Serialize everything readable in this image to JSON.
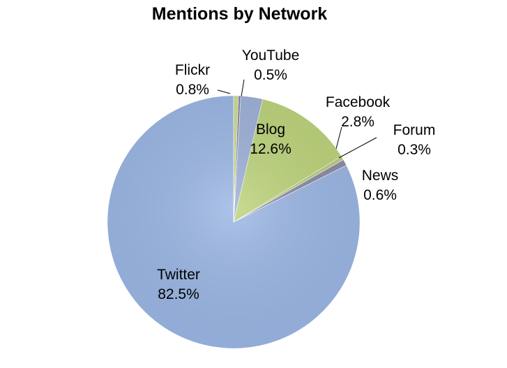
{
  "chart_data": {
    "type": "pie",
    "title": "Mentions by Network",
    "slices": [
      {
        "label": "Twitter",
        "value": 82.5,
        "value_label": "82.5%",
        "color": "#9ab6e4",
        "label_placement": "inside"
      },
      {
        "label": "Flickr",
        "value": 0.8,
        "value_label": "0.8%",
        "color": "#8c8aa6",
        "label_placement": "outside"
      },
      {
        "label": "YouTube",
        "value": 0.5,
        "value_label": "0.5%",
        "color": "#b9cc80",
        "label_placement": "outside"
      },
      {
        "label": "Blog",
        "value": 12.6,
        "value_label": "12.6%",
        "color": "#bcd37a",
        "label_placement": "inside"
      },
      {
        "label": "Facebook",
        "value": 2.8,
        "value_label": "2.8%",
        "color": "#9db0d8",
        "label_placement": "outside"
      },
      {
        "label": "Forum",
        "value": 0.3,
        "value_label": "0.3%",
        "color": "#8a86a4",
        "label_placement": "outside"
      },
      {
        "label": "News",
        "value": 0.6,
        "value_label": "0.6%",
        "color": "#c8dc8e",
        "label_placement": "outside"
      }
    ],
    "legend": "none",
    "grid": false
  }
}
